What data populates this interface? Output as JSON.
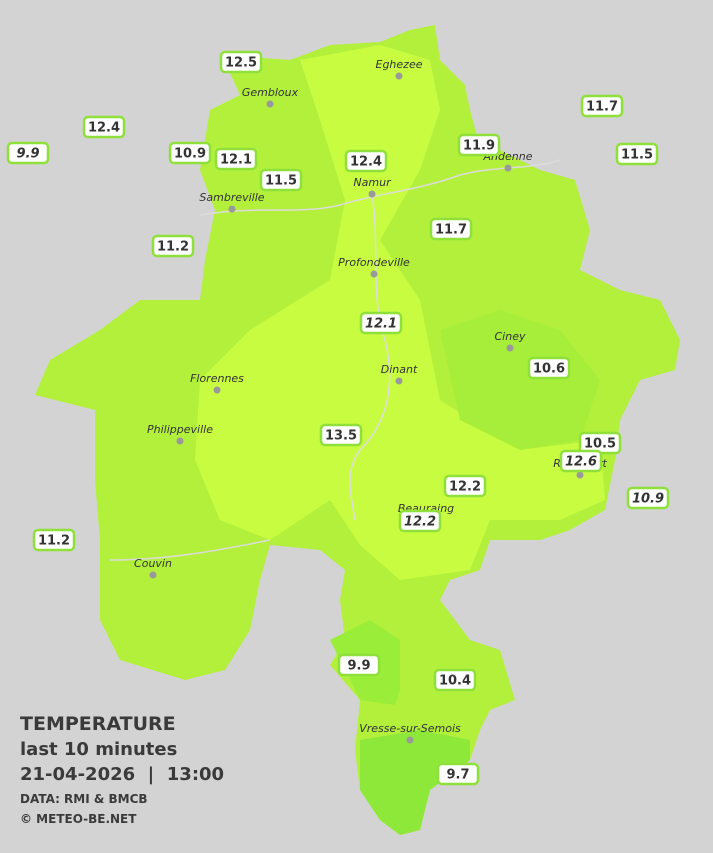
{
  "title": "TEMPERATURE",
  "subtitle": "last 10 minutes",
  "datetime": "21-04-2026  |  13:00",
  "source": "DATA: RMI & BMCB",
  "copyright": "© METEO-BE.NET",
  "cities": [
    "Eghezee",
    "Gembloux",
    "Andenne",
    "Namur",
    "Sambreville",
    "Profondeville",
    "Ciney",
    "Dinant",
    "Florennes",
    "Philippeville",
    "Rochefort",
    "Beauraing",
    "Couvin",
    "Vresse-sur-Semois"
  ],
  "stations": [
    {
      "value": 12.5,
      "italic": false
    },
    {
      "value": 12.4,
      "italic": false
    },
    {
      "value": 9.9,
      "italic": true
    },
    {
      "value": 10.9,
      "italic": false
    },
    {
      "value": 12.1,
      "italic": false
    },
    {
      "value": 11.5,
      "italic": false
    },
    {
      "value": 12.4,
      "italic": false
    },
    {
      "value": 11.9,
      "italic": false
    },
    {
      "value": 11.7,
      "italic": false
    },
    {
      "value": 11.5,
      "italic": false
    },
    {
      "value": 11.7,
      "italic": false
    },
    {
      "value": 11.2,
      "italic": false
    },
    {
      "value": 12.1,
      "italic": true
    },
    {
      "value": 10.6,
      "italic": false
    },
    {
      "value": 13.5,
      "italic": false
    },
    {
      "value": 10.5,
      "italic": false
    },
    {
      "value": 12.6,
      "italic": true
    },
    {
      "value": 12.2,
      "italic": false
    },
    {
      "value": 10.9,
      "italic": true
    },
    {
      "value": 12.2,
      "italic": true
    },
    {
      "value": 11.2,
      "italic": false
    },
    {
      "value": 9.9,
      "italic": false
    },
    {
      "value": 10.4,
      "italic": false
    },
    {
      "value": 9.7,
      "italic": false
    }
  ]
}
